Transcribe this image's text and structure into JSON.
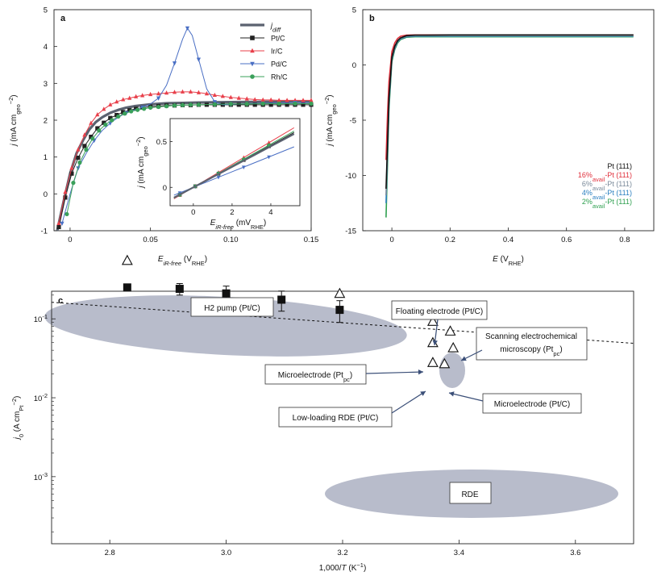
{
  "chart_data": [
    {
      "panel": "a",
      "type": "line",
      "xlabel": "E_iR-free (V_RHE)",
      "ylabel": "j (mA cm_geo^-2)",
      "xlim": [
        -0.01,
        0.15
      ],
      "ylim": [
        -1,
        5
      ],
      "xticks": [
        0,
        0.05,
        0.1,
        0.15
      ],
      "xtick_labels": [
        "0",
        "0.05",
        "0.10",
        "0.15"
      ],
      "yticks": [
        -1,
        0,
        1,
        2,
        3,
        4,
        5
      ],
      "legend": [
        "j_diff",
        "Pt/C",
        "Ir/C",
        "Pd/C",
        "Rh/C"
      ],
      "series": [
        {
          "name": "j_diff",
          "color": "#5b6270",
          "marker": "none",
          "x": [
            -0.008,
            -0.004,
            0,
            0.004,
            0.008,
            0.012,
            0.016,
            0.02,
            0.025,
            0.03,
            0.035,
            0.04,
            0.05,
            0.06,
            0.07,
            0.08,
            0.1,
            0.12,
            0.15
          ],
          "y": [
            -1,
            -0.2,
            0.55,
            1.1,
            1.45,
            1.75,
            1.95,
            2.08,
            2.2,
            2.28,
            2.34,
            2.38,
            2.43,
            2.46,
            2.47,
            2.48,
            2.49,
            2.5,
            2.5
          ]
        },
        {
          "name": "Pt/C",
          "color": "#222222",
          "marker": "square",
          "x": [
            -0.007,
            -0.003,
            0.001,
            0.005,
            0.009,
            0.013,
            0.017,
            0.021,
            0.025,
            0.029,
            0.033,
            0.037,
            0.041,
            0.045,
            0.05,
            0.055,
            0.06,
            0.065,
            0.07,
            0.075,
            0.08,
            0.085,
            0.09,
            0.095,
            0.1,
            0.105,
            0.11,
            0.115,
            0.12,
            0.125,
            0.13,
            0.135,
            0.14,
            0.145,
            0.15
          ],
          "y": [
            -0.9,
            -0.1,
            0.55,
            0.98,
            1.3,
            1.55,
            1.78,
            1.93,
            2.06,
            2.14,
            2.22,
            2.27,
            2.31,
            2.34,
            2.37,
            2.38,
            2.4,
            2.4,
            2.41,
            2.41,
            2.42,
            2.42,
            2.42,
            2.42,
            2.42,
            2.42,
            2.42,
            2.42,
            2.42,
            2.42,
            2.42,
            2.42,
            2.42,
            2.42,
            2.42
          ]
        },
        {
          "name": "Ir/C",
          "color": "#e83f4a",
          "marker": "triangle-up",
          "x": [
            -0.007,
            -0.003,
            0.001,
            0.005,
            0.009,
            0.013,
            0.017,
            0.021,
            0.025,
            0.029,
            0.033,
            0.037,
            0.041,
            0.045,
            0.05,
            0.055,
            0.06,
            0.065,
            0.07,
            0.075,
            0.08,
            0.085,
            0.09,
            0.095,
            0.1,
            0.105,
            0.11,
            0.115,
            0.12,
            0.125,
            0.13,
            0.135,
            0.14,
            0.145,
            0.15
          ],
          "y": [
            -0.8,
            0.05,
            0.7,
            1.2,
            1.6,
            1.92,
            2.15,
            2.3,
            2.42,
            2.5,
            2.56,
            2.6,
            2.64,
            2.67,
            2.7,
            2.72,
            2.74,
            2.76,
            2.77,
            2.77,
            2.75,
            2.72,
            2.68,
            2.65,
            2.62,
            2.6,
            2.58,
            2.56,
            2.55,
            2.55,
            2.54,
            2.54,
            2.54,
            2.54,
            2.54
          ]
        },
        {
          "name": "Pd/C",
          "color": "#4a6fc4",
          "marker": "triangle-down",
          "x": [
            -0.005,
            0,
            0.005,
            0.01,
            0.015,
            0.02,
            0.025,
            0.03,
            0.035,
            0.04,
            0.045,
            0.05,
            0.055,
            0.06,
            0.065,
            0.07,
            0.073,
            0.076,
            0.08,
            0.085,
            0.09,
            0.095,
            0.1,
            0.11,
            0.12,
            0.13,
            0.14,
            0.15
          ],
          "y": [
            -0.8,
            0,
            0.7,
            1.1,
            1.45,
            1.72,
            1.92,
            2.08,
            2.2,
            2.28,
            2.35,
            2.44,
            2.6,
            2.95,
            3.55,
            4.2,
            4.5,
            4.3,
            3.65,
            2.85,
            2.5,
            2.42,
            2.43,
            2.45,
            2.46,
            2.47,
            2.48,
            2.48
          ]
        },
        {
          "name": "Rh/C",
          "color": "#3aa05a",
          "marker": "circle",
          "x": [
            -0.002,
            0.002,
            0.006,
            0.01,
            0.014,
            0.018,
            0.022,
            0.026,
            0.03,
            0.034,
            0.038,
            0.042,
            0.046,
            0.05,
            0.055,
            0.06,
            0.065,
            0.07,
            0.075,
            0.08,
            0.09,
            0.1,
            0.11,
            0.12,
            0.13,
            0.14,
            0.15
          ],
          "y": [
            -0.55,
            0.3,
            0.85,
            1.2,
            1.5,
            1.72,
            1.88,
            2.0,
            2.1,
            2.18,
            2.24,
            2.28,
            2.31,
            2.34,
            2.36,
            2.38,
            2.4,
            2.41,
            2.42,
            2.42,
            2.43,
            2.44,
            2.44,
            2.45,
            2.45,
            2.45,
            2.45
          ]
        }
      ],
      "inset": {
        "xlabel": "E_iR-free (mV_RHE)",
        "ylabel": "j (mA cm_geo^-2)",
        "xlim": [
          -1.2,
          5.5
        ],
        "ylim": [
          -0.2,
          0.75
        ],
        "xticks": [
          0,
          2,
          4
        ],
        "yticks": [
          0,
          0.5
        ],
        "lines": [
          {
            "name": "Pt/C",
            "color": "#222222",
            "marker": "square",
            "x0": -1,
            "x1": 5.2,
            "slope": 0.115
          },
          {
            "name": "Ir/C",
            "color": "#e83f4a",
            "marker": "triangle-up",
            "x0": -1,
            "x1": 5.2,
            "slope": 0.125
          },
          {
            "name": "Pd/C",
            "color": "#4a6fc4",
            "marker": "triangle-down",
            "x0": -1,
            "x1": 5.2,
            "slope": 0.085
          },
          {
            "name": "Rh/C",
            "color": "#3aa05a",
            "marker": "circle",
            "x0": -1,
            "x1": 5.2,
            "slope": 0.118
          },
          {
            "name": "j_diff",
            "color": "#5b6270",
            "marker": "none",
            "x0": -1,
            "x1": 5.2,
            "slope": 0.112
          }
        ]
      }
    },
    {
      "panel": "b",
      "type": "line",
      "xlabel": "E (V_RHE)",
      "ylabel": "j (mA cm_geo^-2)",
      "xlim": [
        -0.1,
        0.9
      ],
      "ylim": [
        -15,
        5
      ],
      "xticks": [
        0,
        0.2,
        0.4,
        0.6,
        0.8
      ],
      "xtick_labels": [
        "0",
        "0.2",
        "0.4",
        "0.6",
        "0.8"
      ],
      "yticks": [
        -15,
        -10,
        -5,
        0,
        5
      ],
      "legend": [
        "Pt (111)",
        "16%avail-Pt (111)",
        "6%avail-Pt (111)",
        "4%avail-Pt (111)",
        "2%avail-Pt (111)"
      ],
      "legend_colors": [
        "#111111",
        "#e0303c",
        "#7a8a9a",
        "#2a7fc0",
        "#2fa050"
      ],
      "series": [
        {
          "name": "2%avail-Pt (111)",
          "color": "#2fa050",
          "x": [
            -0.02,
            -0.015,
            -0.01,
            0,
            0.01,
            0.02,
            0.03,
            0.05,
            0.08,
            0.12,
            0.2,
            0.3,
            0.5,
            0.7,
            0.83
          ],
          "y": [
            -13.8,
            -9,
            -4,
            0.3,
            1.4,
            2.0,
            2.3,
            2.5,
            2.55,
            2.55,
            2.55,
            2.55,
            2.55,
            2.55,
            2.55
          ]
        },
        {
          "name": "4%avail-Pt (111)",
          "color": "#2a7fc0",
          "x": [
            -0.02,
            -0.015,
            -0.01,
            0,
            0.01,
            0.02,
            0.03,
            0.05,
            0.08,
            0.12,
            0.2,
            0.3,
            0.5,
            0.7,
            0.83
          ],
          "y": [
            -12.5,
            -8,
            -3.5,
            0.5,
            1.5,
            2.1,
            2.35,
            2.55,
            2.6,
            2.6,
            2.6,
            2.6,
            2.6,
            2.6,
            2.6
          ]
        },
        {
          "name": "6%avail-Pt (111)",
          "color": "#7a8a9a",
          "x": [
            -0.02,
            -0.015,
            -0.01,
            0,
            0.01,
            0.02,
            0.03,
            0.05,
            0.08,
            0.12,
            0.2,
            0.3,
            0.5,
            0.7,
            0.83
          ],
          "y": [
            -11.8,
            -7.5,
            -3.2,
            0.6,
            1.6,
            2.15,
            2.4,
            2.6,
            2.65,
            2.65,
            2.65,
            2.65,
            2.65,
            2.65,
            2.65
          ]
        },
        {
          "name": "16%avail-Pt (111)",
          "color": "#e0303c",
          "x": [
            -0.02,
            -0.015,
            -0.01,
            0,
            0.01,
            0.02,
            0.03,
            0.05,
            0.08,
            0.12,
            0.2,
            0.3,
            0.5,
            0.7,
            0.83
          ],
          "y": [
            -8.6,
            -4.5,
            -1.5,
            1.2,
            2.0,
            2.4,
            2.6,
            2.7,
            2.72,
            2.72,
            2.72,
            2.72,
            2.72,
            2.72,
            2.72
          ]
        },
        {
          "name": "Pt (111)",
          "color": "#111111",
          "x": [
            -0.02,
            -0.015,
            -0.01,
            0,
            0.01,
            0.02,
            0.03,
            0.05,
            0.08,
            0.12,
            0.2,
            0.3,
            0.5,
            0.7,
            0.83
          ],
          "y": [
            -11.2,
            -7.2,
            -3.0,
            0.7,
            1.7,
            2.2,
            2.45,
            2.65,
            2.7,
            2.7,
            2.72,
            2.72,
            2.72,
            2.72,
            2.72
          ]
        }
      ]
    },
    {
      "panel": "c",
      "type": "scatter",
      "xlabel": "1,000/T (K^-1)",
      "ylabel": "j0 (A cm_Pt^-2)",
      "yscale": "log",
      "xlim": [
        2.7,
        3.7
      ],
      "ylim_log10": [
        -3.85,
        -0.65
      ],
      "xticks": [
        2.8,
        3.0,
        3.2,
        3.4,
        3.6
      ],
      "xtick_labels": [
        "2.8",
        "3.0",
        "3.2",
        "3.4",
        "3.6"
      ],
      "yticks": [
        -3,
        -2,
        -1
      ],
      "ytick_labels": [
        "10",
        "10",
        "10"
      ],
      "ytick_exponents": [
        "-3",
        "-2",
        "-1"
      ],
      "fit_line": {
        "x": [
          2.7,
          3.7
        ],
        "log10_y": [
          -0.79,
          -1.31
        ]
      },
      "h2_pump_squares": {
        "x": [
          2.83,
          2.92,
          3.0,
          3.095,
          3.195
        ],
        "y": [
          0.25,
          0.24,
          0.21,
          0.175,
          0.13
        ],
        "err_low": [
          0.02,
          0.04,
          0.05,
          0.05,
          0.04
        ],
        "err_high": [
          0.02,
          0.04,
          0.05,
          0.05,
          0.04
        ]
      },
      "h2_pump_triangles": {
        "x": [
          2.83,
          3.195
        ],
        "y": [
          0.55,
          0.21
        ]
      },
      "floating_electrode_triangles": {
        "x": [
          3.355
        ],
        "y": [
          0.093
        ]
      },
      "microelectrode_ptpc_triangles": {
        "x": [
          3.355
        ],
        "y": [
          0.05
        ]
      },
      "secm_triangles": {
        "x": [
          3.385,
          3.39
        ],
        "y": [
          0.07,
          0.043
        ]
      },
      "microelectrode_ptc_triangles": {
        "x": [
          3.375
        ],
        "y": [
          0.027
        ]
      },
      "low_loading_triangles": {
        "x": [
          3.355
        ],
        "y": [
          0.028
        ]
      },
      "annotations": {
        "h2_pump": "H2 pump (Pt/C)",
        "floating": "Floating electrode (Pt/C)",
        "secm_line1": "Scanning electrochemical",
        "secm_line2": "microscopy (Pt",
        "secm_sub": "pc",
        "secm_end": ")",
        "micro_pc": "Microelectrode (Pt",
        "micro_pc_sub": "pc",
        "micro_pc_end": ")",
        "micro_c": "Microelectrode (Pt/C)",
        "lowload": "Low-loading RDE (Pt/C)",
        "rde": "RDE"
      }
    }
  ],
  "panels": {
    "a_label": "a",
    "b_label": "b",
    "c_label": "c"
  }
}
